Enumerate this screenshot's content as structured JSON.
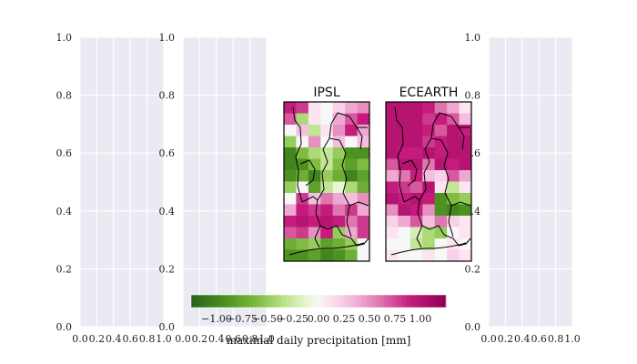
{
  "chart_data": {
    "type": "heatmap",
    "background_axes": [
      {
        "xticks": [
          "0.0",
          "0.2",
          "0.4",
          "0.6",
          "0.8",
          "1.0"
        ],
        "yticks": [
          "0.0",
          "0.2",
          "0.4",
          "0.6",
          "0.8",
          "1.0"
        ],
        "grid": true
      },
      {
        "xticks": [
          "0.0",
          "0.2",
          "0.4",
          "0.6",
          "0.8",
          "1.0"
        ],
        "yticks": [
          "0.0",
          "0.2",
          "0.4",
          "0.6",
          "0.8",
          "1.0"
        ],
        "grid": true
      },
      {
        "xticks": [
          "0.0",
          "0.2",
          "0.4",
          "0.6",
          "0.8",
          "1.0"
        ],
        "yticks": [
          "0.0",
          "0.2",
          "0.4",
          "0.6",
          "0.8",
          "1.0"
        ],
        "grid": true
      }
    ],
    "maps": [
      {
        "title": "IPSL",
        "values": [
          [
            0.9,
            0.8,
            0.1,
            0.0,
            0.2,
            0.4,
            0.5
          ],
          [
            0.7,
            -0.4,
            0.1,
            0.0,
            0.4,
            0.7,
            0.9
          ],
          [
            0.0,
            0.3,
            -0.3,
            0.1,
            0.5,
            0.9,
            0.4
          ],
          [
            -0.5,
            0.0,
            0.5,
            0.0,
            0.3,
            0.0,
            0.3
          ],
          [
            -1.0,
            -0.6,
            -0.4,
            -0.3,
            -0.5,
            -0.9,
            -0.9
          ],
          [
            -1.0,
            -0.9,
            -0.6,
            -0.3,
            -0.6,
            -0.8,
            -0.6
          ],
          [
            -0.9,
            -0.7,
            -1.0,
            -0.5,
            -0.7,
            -1.0,
            -0.8
          ],
          [
            -0.5,
            0.0,
            -0.8,
            -0.3,
            -0.1,
            -0.4,
            -0.7
          ],
          [
            0.0,
            0.8,
            0.3,
            0.6,
            0.4,
            0.3,
            0.5
          ],
          [
            0.4,
            0.9,
            0.8,
            0.9,
            0.6,
            0.8,
            0.4
          ],
          [
            0.9,
            1.0,
            0.9,
            1.0,
            0.9,
            0.6,
            0.8
          ],
          [
            0.7,
            0.8,
            0.5,
            0.9,
            -0.5,
            0.4,
            0.8
          ],
          [
            -0.7,
            -0.6,
            -0.5,
            -0.8,
            -0.7,
            -0.5,
            0.0
          ],
          [
            -0.9,
            -0.9,
            -0.8,
            -1.0,
            -0.9,
            -0.7,
            0.0
          ]
        ]
      },
      {
        "title": "ECEARTH",
        "values": [
          [
            1.0,
            1.0,
            1.0,
            0.9,
            0.6,
            0.4,
            0.1
          ],
          [
            1.0,
            1.0,
            1.0,
            0.8,
            0.9,
            0.7,
            0.3
          ],
          [
            1.0,
            1.0,
            1.0,
            0.9,
            0.7,
            1.0,
            0.9
          ],
          [
            1.0,
            1.0,
            1.0,
            0.8,
            0.9,
            1.0,
            1.0
          ],
          [
            1.0,
            0.9,
            0.9,
            1.0,
            0.9,
            1.0,
            1.0
          ],
          [
            0.7,
            1.0,
            1.0,
            0.6,
            1.0,
            0.9,
            1.0
          ],
          [
            0.4,
            0.6,
            0.9,
            0.3,
            0.2,
            0.7,
            0.4
          ],
          [
            0.9,
            0.8,
            0.7,
            1.0,
            0.1,
            -0.3,
            0.1
          ],
          [
            1.0,
            0.9,
            1.0,
            0.9,
            -0.9,
            -0.6,
            -0.5
          ],
          [
            0.5,
            1.0,
            0.9,
            0.5,
            -0.9,
            -1.0,
            -0.9
          ],
          [
            0.2,
            0.4,
            0.7,
            0.3,
            0.6,
            0.2,
            0.1
          ],
          [
            0.1,
            0.0,
            -0.2,
            -0.4,
            -0.5,
            0.0,
            0.1
          ],
          [
            0.0,
            0.0,
            -0.3,
            -0.4,
            0.0,
            0.1,
            0.0
          ],
          [
            0.1,
            0.0,
            0.0,
            0.1,
            0.0,
            0.2,
            0.1
          ]
        ]
      }
    ],
    "colorbar": {
      "colormap": "PiYG (reversed)",
      "range": [
        -1.25,
        1.25
      ],
      "ticks": [
        "−1.00",
        "−0.75",
        "−0.50",
        "−0.25",
        "0.00",
        "0.25",
        "0.50",
        "0.75",
        "1.00"
      ],
      "label": "maximal daily precipitation [mm]"
    }
  }
}
